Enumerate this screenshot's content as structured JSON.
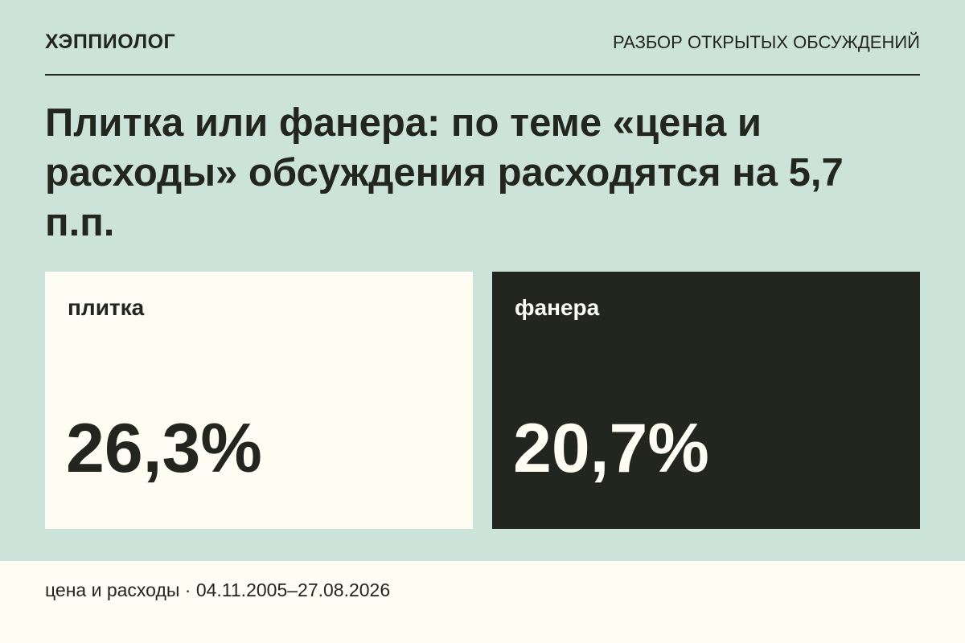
{
  "header": {
    "brand": "ХЭППИОЛОГ",
    "section": "РАЗБОР ОТКРЫТЫХ ОБСУЖДЕНИЙ"
  },
  "headline": "Плитка или фанера: по теме «цена и расходы» обсуждения расходятся на 5,7 п.п.",
  "cards": [
    {
      "label": "плитка",
      "value": "26,3%"
    },
    {
      "label": "фанера",
      "value": "20,7%"
    }
  ],
  "footer": {
    "text": "цена и расходы · 04.11.2005–27.08.2026"
  },
  "colors": {
    "background": "#cce3da",
    "light_card": "#fffcf4",
    "dark_card": "#23261f",
    "text_dark": "#23261f",
    "text_light": "#fffcf4"
  }
}
